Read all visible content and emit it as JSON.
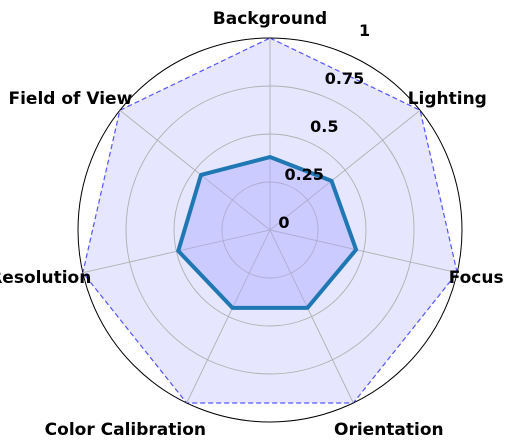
{
  "chart_data": {
    "type": "radar",
    "axes": [
      "Background",
      "Lighting",
      "Focus",
      "Orientation",
      "Color Calibration",
      "Resolution",
      "Field of View"
    ],
    "series": [
      {
        "values": [
          0.38,
          0.41,
          0.46,
          0.45,
          0.45,
          0.49,
          0.46
        ]
      }
    ],
    "reference_series": [
      {
        "values": [
          1,
          1,
          1,
          1,
          1,
          1,
          1
        ]
      }
    ],
    "rticks": [
      0,
      0.25,
      0.5,
      0.75,
      1
    ],
    "rtick_labels": [
      "0",
      "0.25",
      "0.5",
      "0.75",
      "1"
    ],
    "rlim": [
      0,
      1
    ],
    "grid": true,
    "colors": {
      "series_line": "#1f77b4",
      "series_fill": "#aaaaff",
      "reference_line": "#5555ff",
      "reference_fill": "#e6e6ff",
      "grid": "#b0b0b0",
      "outer_circle": "#000000"
    }
  }
}
